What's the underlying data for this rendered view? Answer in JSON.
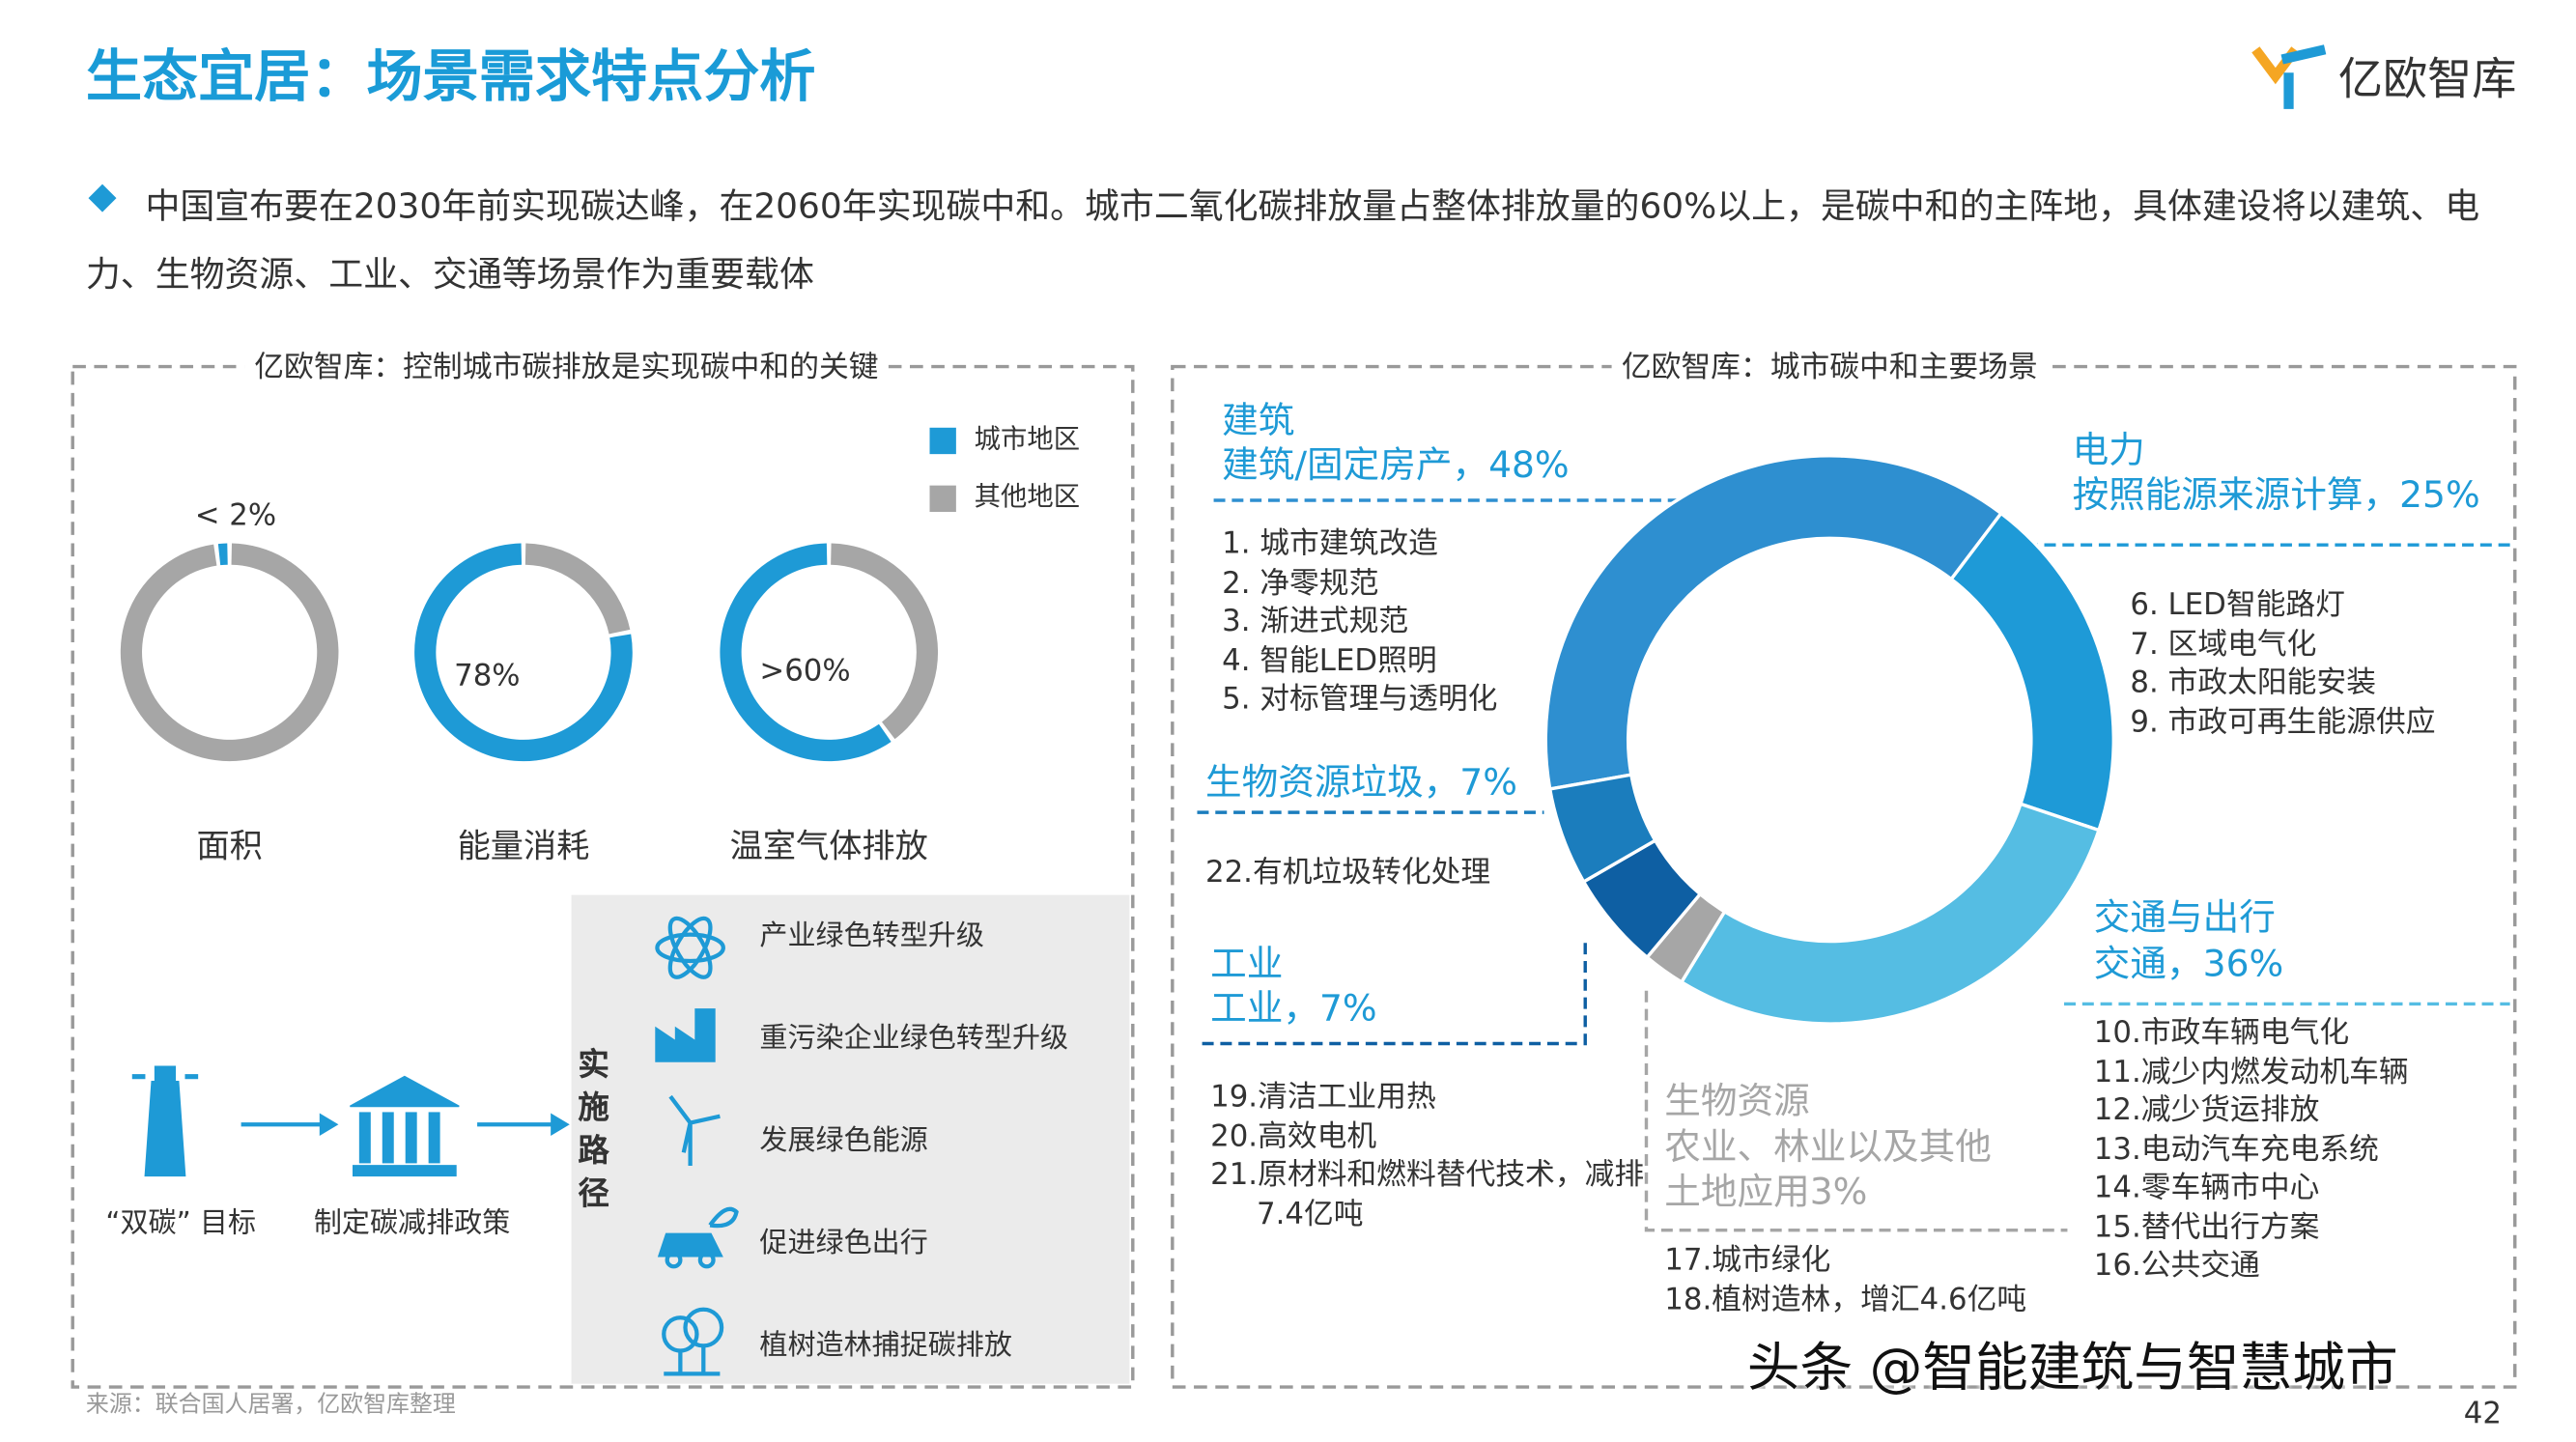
{
  "header": {
    "title": "生态宜居：场景需求特点分析",
    "logo": "亿欧智库"
  },
  "intro": "中国宣布要在2030年前实现碳达峰，在2060年实现碳中和。城市二氧化碳排放量占整体排放量的60%以上，是碳中和的主阵地，具体建设将以建筑、电力、生物资源、工业、交通等场景作为重要载体",
  "left_panel": {
    "path_label": "实施路径",
    "goal": "“双碳” 目标",
    "policy": "制定碳减排政策",
    "measures": [
      "产业绿色转型升级",
      "重污染企业绿色转型升级",
      "发展绿色能源",
      "促进绿色出行",
      "植树造林捕捉碳排放"
    ]
  },
  "chart_data": [
    {
      "type": "donut",
      "title": "亿欧智库：控制城市碳排放是实现碳中和的关键",
      "categories": [
        "面积",
        "能量消耗",
        "温室气体排放"
      ],
      "series": [
        {
          "name": "城市地区",
          "color": "#1e9ad6",
          "values": [
            2,
            78,
            60
          ],
          "value_labels": [
            "< 2%",
            "78%",
            ">60%"
          ]
        },
        {
          "name": "其他地区",
          "color": "#a6a6a6",
          "values": [
            98,
            22,
            40
          ]
        }
      ],
      "legend": "top-right"
    },
    {
      "type": "donut",
      "title": "亿欧智库：城市碳中和主要场景",
      "categories": [
        "建筑",
        "电力",
        "交通与出行",
        "生物资源",
        "工业",
        null
      ],
      "values": [
        48,
        25,
        36,
        3,
        7,
        7
      ],
      "value_labels": [
        "建筑/固定房产，48%",
        "按照能源来源计算，25%",
        "交通，36%",
        "农业、林业以及其他土地应用3%",
        "工业，7%",
        "生物资源垃圾，7%"
      ],
      "colors": [
        "#2e8fd0",
        "#1e9ad7",
        "#55bde3",
        "#a6a6a6",
        "#0e5fa3",
        "#1b7dbd"
      ],
      "details": [
        [
          "1. 城市建筑改造",
          "2. 净零规范",
          "3. 渐进式规范",
          "4. 智能LED照明",
          "5. 对标管理与透明化"
        ],
        [
          "6. LED智能路灯",
          "7. 区域电气化",
          "8. 市政太阳能安装",
          "9. 市政可再生能源供应"
        ],
        [
          "10.市政车辆电气化",
          "11.减少内燃发动机车辆",
          "12.减少货运排放",
          "13.电动汽车充电系统",
          "14.零车辆市中心",
          "15.替代出行方案",
          "16.公共交通"
        ],
        [
          "17.城市绿化",
          "18.植树造林，增汇4.6亿吨"
        ],
        [
          "19.清洁工业用热",
          "20.高效电机",
          "21.原材料和燃料替代技术，减排7.4亿吨"
        ],
        [
          "22.有机垃圾转化处理"
        ]
      ]
    }
  ],
  "source": "来源：联合国人居署，亿欧智库整理",
  "watermark": "头条 @智能建筑与智慧城市",
  "page_number": "42"
}
